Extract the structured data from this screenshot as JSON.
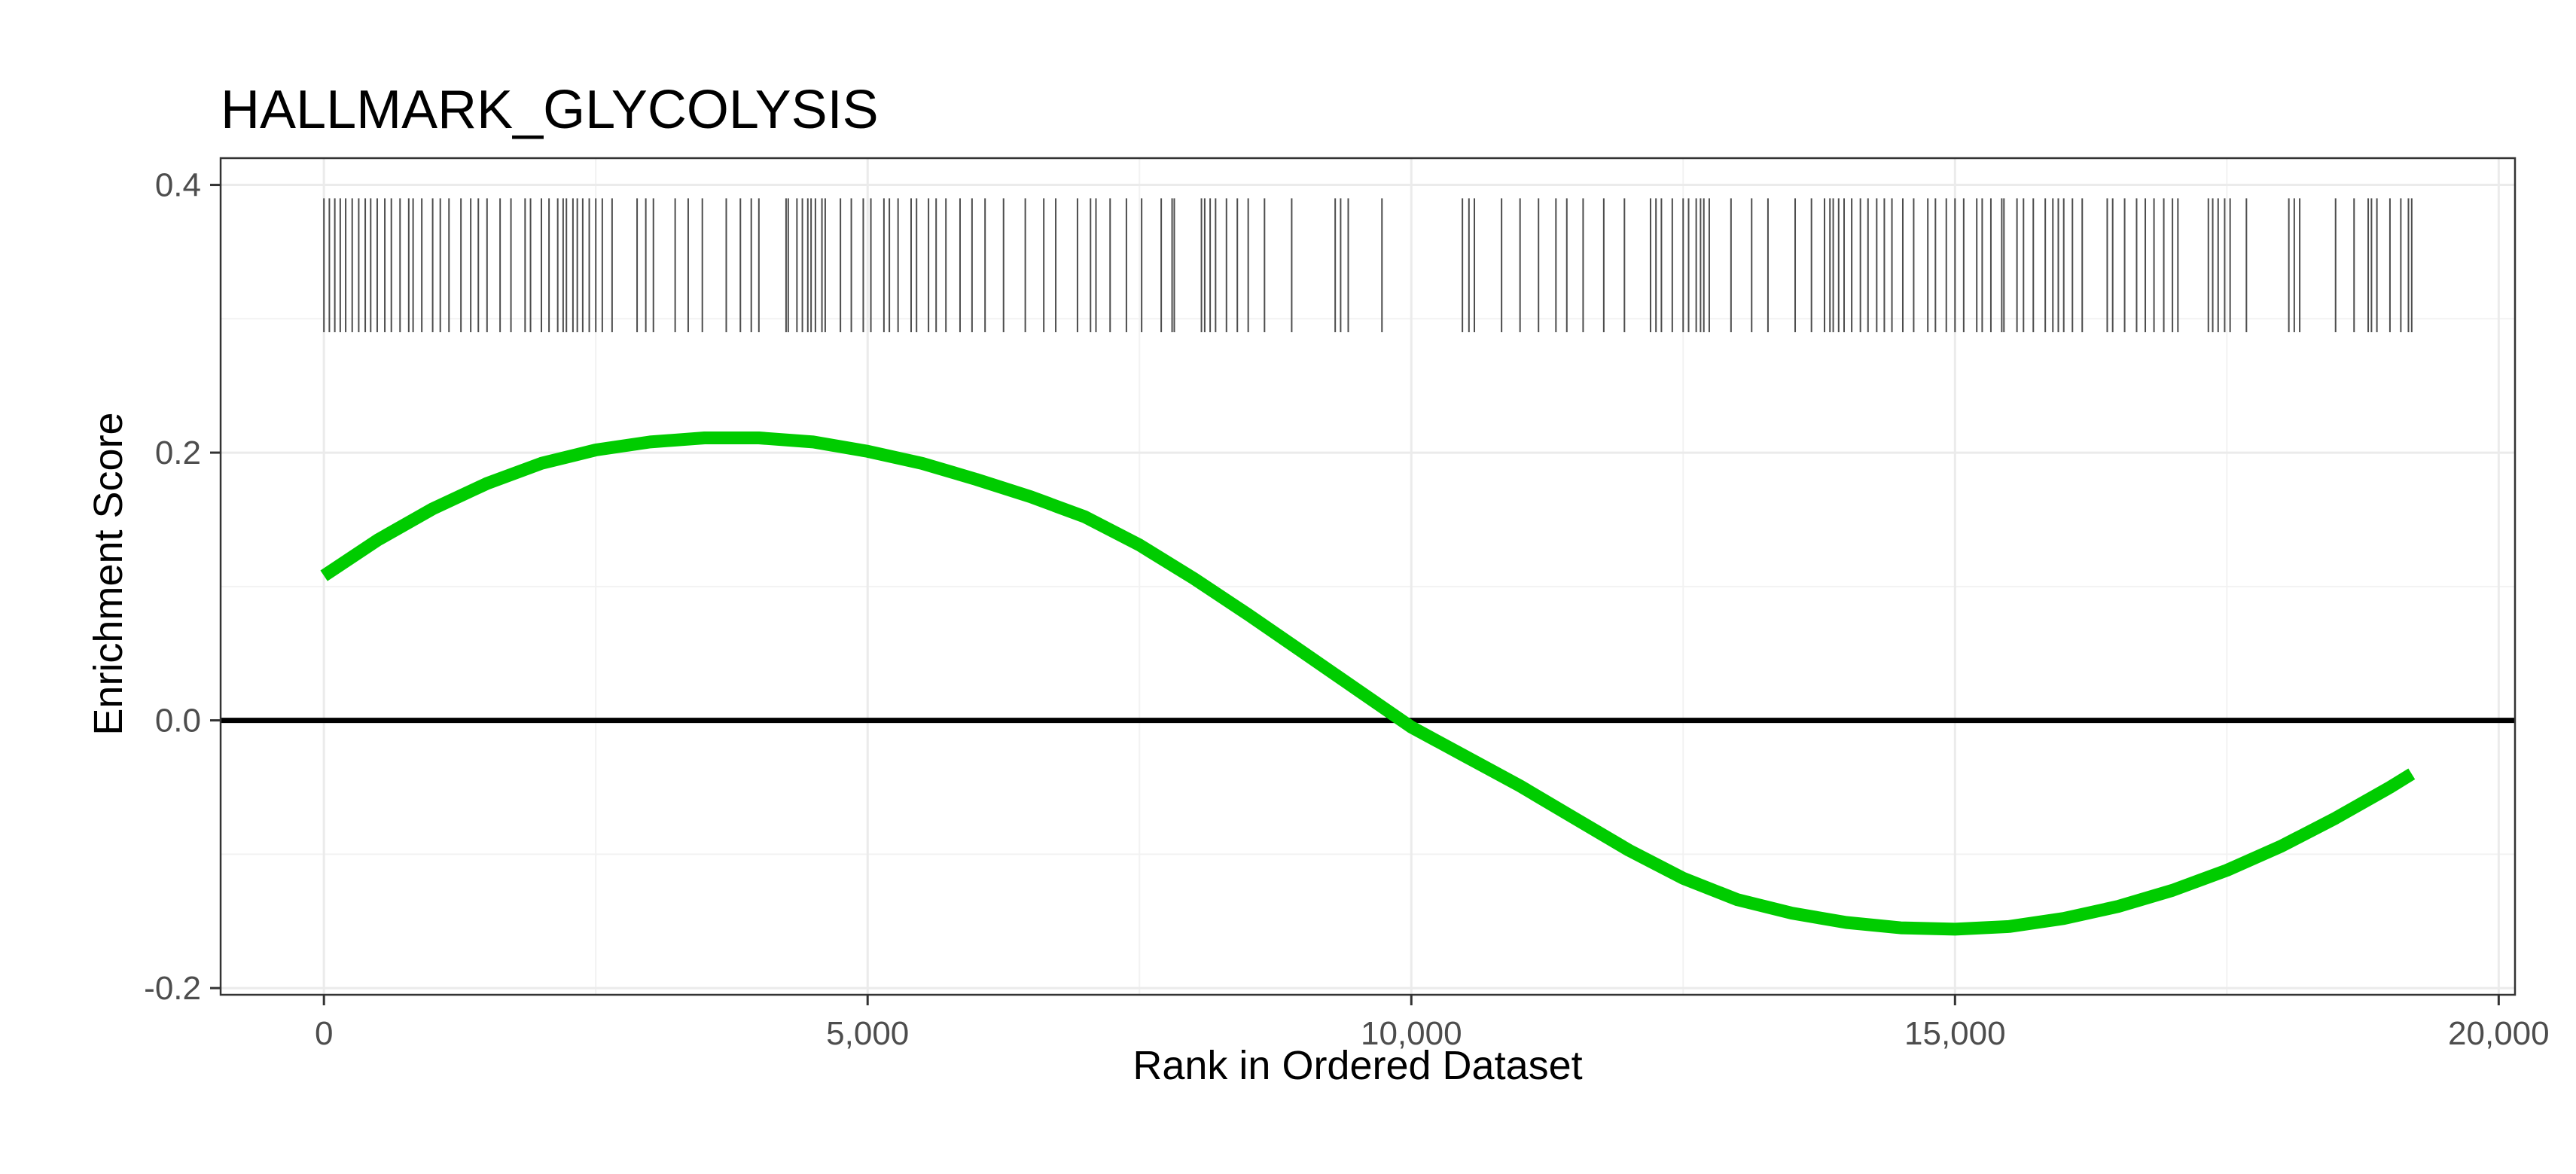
{
  "chart_data": {
    "type": "line",
    "title": "HALLMARK_GLYCOLYSIS",
    "xlabel": "Rank in Ordered Dataset",
    "ylabel": "Enrichment Score",
    "xlim": [
      -950,
      20150
    ],
    "ylim": [
      -0.205,
      0.42
    ],
    "x_ticks": [
      0,
      5000,
      10000,
      15000,
      20000
    ],
    "x_tick_labels": [
      "0",
      "5,000",
      "10,000",
      "15,000",
      "20,000"
    ],
    "y_ticks": [
      -0.2,
      0,
      0.2,
      0.4
    ],
    "y_tick_labels": [
      "-0.2",
      "0.0",
      "0.2",
      "0.4"
    ],
    "grid": true,
    "line_color": "#00cc00",
    "baseline_color": "#000000",
    "hit_color": "#4d4d4d",
    "series": [
      {
        "x": [
          0,
          500,
          1000,
          1500,
          2000,
          2500,
          3000,
          3500,
          4000,
          4500,
          5000,
          5500,
          6000,
          6500,
          7000,
          7500,
          8000,
          8500,
          9000,
          9500,
          10000,
          10500,
          11000,
          11500,
          12000,
          12500,
          13000,
          13500,
          14000,
          14500,
          15000,
          15500,
          16000,
          16500,
          17000,
          17500,
          18000,
          18500,
          19000,
          19200
        ],
        "values": [
          0.108,
          0.135,
          0.158,
          0.177,
          0.192,
          0.202,
          0.208,
          0.211,
          0.211,
          0.208,
          0.201,
          0.192,
          0.18,
          0.167,
          0.152,
          0.131,
          0.106,
          0.079,
          0.051,
          0.023,
          -0.005,
          -0.027,
          -0.049,
          -0.073,
          -0.097,
          -0.118,
          -0.134,
          -0.144,
          -0.151,
          -0.155,
          -0.156,
          -0.154,
          -0.148,
          -0.139,
          -0.127,
          -0.112,
          -0.094,
          -0.073,
          -0.05,
          -0.04
        ]
      }
    ],
    "hits": {
      "y_range": [
        0.29,
        0.39
      ],
      "x": [
        0,
        50,
        100,
        150,
        200,
        260,
        320,
        380,
        430,
        490,
        560,
        620,
        700,
        780,
        820,
        900,
        1000,
        1070,
        1150,
        1260,
        1350,
        1420,
        1500,
        1620,
        1720,
        1850,
        1900,
        2000,
        2070,
        2150,
        2200,
        2230,
        2290,
        2330,
        2380,
        2440,
        2500,
        2560,
        2650,
        2880,
        2960,
        3030,
        3230,
        3350,
        3480,
        3700,
        3830,
        3930,
        4000,
        4250,
        4270,
        4350,
        4400,
        4450,
        4480,
        4520,
        4580,
        4610,
        4750,
        4850,
        4960,
        5030,
        5150,
        5200,
        5280,
        5400,
        5450,
        5560,
        5630,
        5720,
        5850,
        5960,
        6080,
        6250,
        6450,
        6620,
        6730,
        6930,
        7050,
        7100,
        7230,
        7380,
        7520,
        7700,
        7800,
        7820,
        8070,
        8100,
        8150,
        8200,
        8300,
        8400,
        8500,
        8650,
        8900,
        9300,
        9350,
        9420,
        9730,
        10470,
        10530,
        10580,
        10830,
        11000,
        11170,
        11330,
        11430,
        11580,
        11770,
        11960,
        12200,
        12250,
        12300,
        12400,
        12500,
        12550,
        12620,
        12660,
        12690,
        12740,
        12940,
        13130,
        13280,
        13530,
        13680,
        13800,
        13850,
        13880,
        13930,
        13980,
        14050,
        14130,
        14200,
        14280,
        14350,
        14420,
        14520,
        14620,
        14750,
        14820,
        14920,
        15000,
        15080,
        15200,
        15250,
        15330,
        15430,
        15450,
        15570,
        15630,
        15720,
        15830,
        15900,
        15950,
        16000,
        16080,
        16170,
        16400,
        16450,
        16560,
        16670,
        16750,
        16830,
        16920,
        17000,
        17050,
        17330,
        17370,
        17420,
        17480,
        17530,
        17680,
        18070,
        18120,
        18170,
        18500,
        18670,
        18800,
        18830,
        18880,
        19000,
        19100,
        19170,
        19200
      ]
    }
  }
}
